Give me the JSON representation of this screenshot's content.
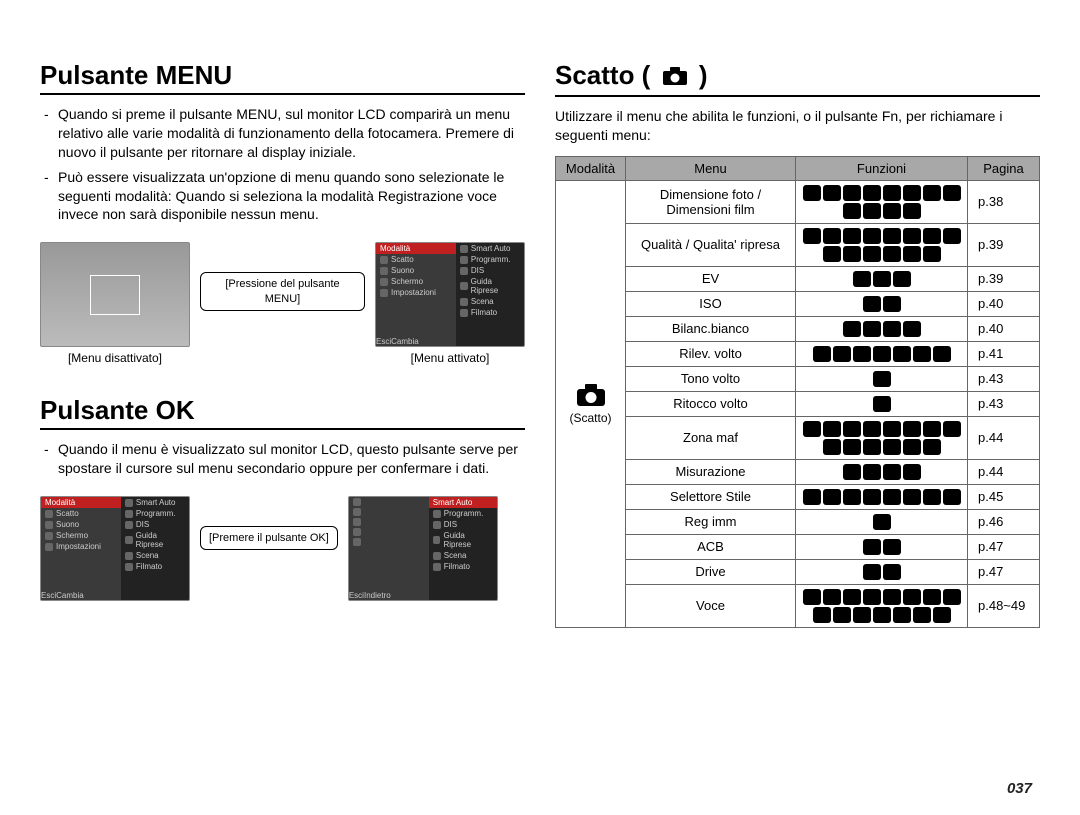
{
  "page_number": "037",
  "left": {
    "sec1": {
      "title": "Pulsante MENU",
      "bullets": [
        "Quando si preme il pulsante MENU, sul monitor LCD comparirà un menu relativo alle varie modalità di funzionamento della fotocamera. Premere di nuovo il pulsante per ritornare al display iniziale.",
        "Può essere visualizzata un'opzione di menu quando sono selezionate le seguenti modalità: Quando si seleziona la modalità Registrazione voce invece non sarà disponibile nessun menu."
      ],
      "shot1_caption": "[Menu disattivato]",
      "arrow_label": "[Pressione del pulsante MENU]",
      "shot2_caption": "[Menu attivato]",
      "menu_header": "Modalità",
      "menu_left_items": [
        "Scatto",
        "Suono",
        "Schermo",
        "Impostazioni"
      ],
      "menu_right_items": [
        "Smart Auto",
        "Programm.",
        "DIS",
        "Guida Riprese",
        "Scena",
        "Filmato"
      ],
      "menu_footer_left": "Esci",
      "menu_footer_right": "Cambia"
    },
    "sec2": {
      "title": "Pulsante OK",
      "bullets": [
        "Quando il menu è visualizzato sul monitor LCD, questo pulsante serve per spostare il cursore sul menu secondario oppure per confermare i dati."
      ],
      "arrow_label": "[Premere il pulsante OK]",
      "menu2_right_items": [
        "Smart Auto",
        "Programm.",
        "DIS",
        "Guida Riprese",
        "Scena",
        "Filmato"
      ],
      "menu2_footer_right": "Indietro"
    }
  },
  "right": {
    "title": "Scatto (",
    "title_close": ")",
    "intro": "Utilizzare il menu che abilita le funzioni, o il pulsante Fn, per richiamare i seguenti menu:",
    "headers": {
      "modalita": "Modalità",
      "menu": "Menu",
      "funzioni": "Funzioni",
      "pagina": "Pagina"
    },
    "mode_label": "(Scatto)",
    "rows": [
      {
        "menu": "Dimensione foto / Dimensioni film",
        "icons": 12,
        "page": "p.38"
      },
      {
        "menu": "Qualità / Qualita' ripresa",
        "icons": 14,
        "page": "p.39"
      },
      {
        "menu": "EV",
        "icons": 3,
        "page": "p.39"
      },
      {
        "menu": "ISO",
        "icons": 2,
        "page": "p.40"
      },
      {
        "menu": "Bilanc.bianco",
        "icons": 4,
        "page": "p.40"
      },
      {
        "menu": "Rilev. volto",
        "icons": 7,
        "page": "p.41"
      },
      {
        "menu": "Tono volto",
        "icons": 1,
        "page": "p.43"
      },
      {
        "menu": "Ritocco volto",
        "icons": 1,
        "page": "p.43"
      },
      {
        "menu": "Zona maf",
        "icons": 14,
        "page": "p.44"
      },
      {
        "menu": "Misurazione",
        "icons": 4,
        "page": "p.44"
      },
      {
        "menu": "Selettore Stile",
        "icons": 8,
        "page": "p.45"
      },
      {
        "menu": "Reg imm",
        "icons": 1,
        "page": "p.46"
      },
      {
        "menu": "ACB",
        "icons": 2,
        "page": "p.47"
      },
      {
        "menu": "Drive",
        "icons": 2,
        "page": "p.47"
      },
      {
        "menu": "Voce",
        "icons": 15,
        "page": "p.48~49"
      }
    ]
  },
  "colors": {
    "icon_bg": "#000000",
    "header_bg": "#a8a8a8",
    "border": "#666666",
    "menu_accent": "#c02020"
  }
}
